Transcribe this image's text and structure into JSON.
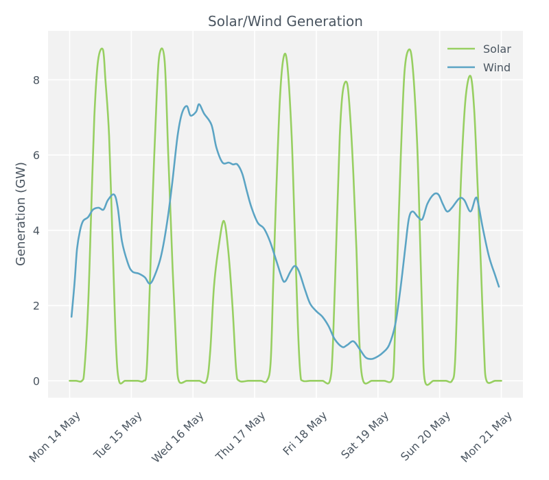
{
  "chart_data": {
    "type": "line",
    "title": "Solar/Wind Generation",
    "xlabel": "",
    "ylabel": "Generation (GW)",
    "x_unit": "days since Mon 14 May 00:00",
    "xlim": [
      -0.35,
      7.35
    ],
    "ylim": [
      -0.45,
      9.3
    ],
    "x_ticks": [
      {
        "value": 0,
        "label": "Mon 14 May"
      },
      {
        "value": 1,
        "label": "Tue 15 May"
      },
      {
        "value": 2,
        "label": "Wed 16 May"
      },
      {
        "value": 3,
        "label": "Thu 17 May"
      },
      {
        "value": 4,
        "label": "Fri 18 May"
      },
      {
        "value": 5,
        "label": "Sat 19 May"
      },
      {
        "value": 6,
        "label": "Sun 20 May"
      },
      {
        "value": 7,
        "label": "Mon 21 May"
      }
    ],
    "y_ticks": [
      {
        "value": 0,
        "label": "0"
      },
      {
        "value": 2,
        "label": "2"
      },
      {
        "value": 4,
        "label": "4"
      },
      {
        "value": 6,
        "label": "6"
      },
      {
        "value": 8,
        "label": "8"
      }
    ],
    "legend_position": "top-right",
    "grid": true,
    "series": [
      {
        "name": "Solar",
        "color": "#97cf61",
        "points": [
          [
            0.0,
            0
          ],
          [
            0.1,
            0
          ],
          [
            0.2,
            0
          ],
          [
            0.24,
            0.3
          ],
          [
            0.3,
            2.0
          ],
          [
            0.35,
            4.5
          ],
          [
            0.4,
            7.0
          ],
          [
            0.46,
            8.5
          ],
          [
            0.54,
            8.8
          ],
          [
            0.58,
            8.0
          ],
          [
            0.64,
            6.5
          ],
          [
            0.7,
            3.5
          ],
          [
            0.75,
            1.0
          ],
          [
            0.8,
            0
          ],
          [
            0.9,
            0
          ],
          [
            1.0,
            0
          ],
          [
            1.1,
            0
          ],
          [
            1.2,
            0
          ],
          [
            1.25,
            0.3
          ],
          [
            1.3,
            2.5
          ],
          [
            1.35,
            5.0
          ],
          [
            1.41,
            7.5
          ],
          [
            1.46,
            8.7
          ],
          [
            1.54,
            8.5
          ],
          [
            1.6,
            6.0
          ],
          [
            1.67,
            3.0
          ],
          [
            1.73,
            0.8
          ],
          [
            1.77,
            0
          ],
          [
            1.9,
            0
          ],
          [
            2.0,
            0
          ],
          [
            2.1,
            0
          ],
          [
            2.22,
            0
          ],
          [
            2.28,
            0.8
          ],
          [
            2.34,
            2.5
          ],
          [
            2.42,
            3.6
          ],
          [
            2.5,
            4.25
          ],
          [
            2.57,
            3.5
          ],
          [
            2.64,
            2.0
          ],
          [
            2.7,
            0.3
          ],
          [
            2.75,
            0
          ],
          [
            2.9,
            0
          ],
          [
            3.0,
            0
          ],
          [
            3.1,
            0
          ],
          [
            3.2,
            0
          ],
          [
            3.26,
            0.5
          ],
          [
            3.3,
            2.5
          ],
          [
            3.35,
            5.0
          ],
          [
            3.41,
            7.5
          ],
          [
            3.47,
            8.6
          ],
          [
            3.53,
            8.4
          ],
          [
            3.6,
            6.5
          ],
          [
            3.65,
            4.0
          ],
          [
            3.7,
            1.5
          ],
          [
            3.74,
            0.2
          ],
          [
            3.78,
            0
          ],
          [
            3.9,
            0
          ],
          [
            4.0,
            0
          ],
          [
            4.1,
            0
          ],
          [
            4.22,
            0
          ],
          [
            4.27,
            1.0
          ],
          [
            4.33,
            4.0
          ],
          [
            4.38,
            6.5
          ],
          [
            4.43,
            7.7
          ],
          [
            4.5,
            7.9
          ],
          [
            4.55,
            7.0
          ],
          [
            4.6,
            5.5
          ],
          [
            4.65,
            3.5
          ],
          [
            4.7,
            1.0
          ],
          [
            4.76,
            0
          ],
          [
            4.9,
            0
          ],
          [
            5.0,
            0
          ],
          [
            5.1,
            0
          ],
          [
            5.22,
            0
          ],
          [
            5.26,
            0.5
          ],
          [
            5.31,
            3.0
          ],
          [
            5.37,
            6.0
          ],
          [
            5.43,
            8.2
          ],
          [
            5.5,
            8.8
          ],
          [
            5.56,
            8.4
          ],
          [
            5.63,
            6.5
          ],
          [
            5.67,
            4.5
          ],
          [
            5.72,
            1.5
          ],
          [
            5.76,
            0
          ],
          [
            5.9,
            0
          ],
          [
            6.0,
            0
          ],
          [
            6.1,
            0
          ],
          [
            6.2,
            0
          ],
          [
            6.25,
            0.5
          ],
          [
            6.3,
            3.0
          ],
          [
            6.35,
            5.5
          ],
          [
            6.42,
            7.5
          ],
          [
            6.5,
            8.1
          ],
          [
            6.56,
            7.2
          ],
          [
            6.62,
            5.0
          ],
          [
            6.67,
            3.0
          ],
          [
            6.72,
            0.8
          ],
          [
            6.76,
            0
          ],
          [
            6.9,
            0
          ],
          [
            7.0,
            0
          ]
        ]
      },
      {
        "name": "Wind",
        "color": "#5ba4c4",
        "points": [
          [
            0.03,
            1.7
          ],
          [
            0.08,
            2.6
          ],
          [
            0.12,
            3.5
          ],
          [
            0.17,
            4.0
          ],
          [
            0.22,
            4.25
          ],
          [
            0.3,
            4.35
          ],
          [
            0.38,
            4.55
          ],
          [
            0.47,
            4.6
          ],
          [
            0.55,
            4.55
          ],
          [
            0.62,
            4.8
          ],
          [
            0.72,
            4.95
          ],
          [
            0.78,
            4.6
          ],
          [
            0.85,
            3.7
          ],
          [
            0.95,
            3.1
          ],
          [
            1.02,
            2.9
          ],
          [
            1.12,
            2.85
          ],
          [
            1.22,
            2.75
          ],
          [
            1.3,
            2.58
          ],
          [
            1.38,
            2.8
          ],
          [
            1.48,
            3.3
          ],
          [
            1.58,
            4.2
          ],
          [
            1.66,
            5.2
          ],
          [
            1.75,
            6.5
          ],
          [
            1.82,
            7.1
          ],
          [
            1.9,
            7.3
          ],
          [
            1.96,
            7.05
          ],
          [
            2.05,
            7.15
          ],
          [
            2.1,
            7.35
          ],
          [
            2.18,
            7.1
          ],
          [
            2.3,
            6.8
          ],
          [
            2.38,
            6.2
          ],
          [
            2.48,
            5.8
          ],
          [
            2.58,
            5.8
          ],
          [
            2.65,
            5.75
          ],
          [
            2.72,
            5.75
          ],
          [
            2.8,
            5.5
          ],
          [
            2.88,
            5.0
          ],
          [
            2.95,
            4.6
          ],
          [
            3.05,
            4.2
          ],
          [
            3.15,
            4.05
          ],
          [
            3.25,
            3.7
          ],
          [
            3.35,
            3.2
          ],
          [
            3.45,
            2.7
          ],
          [
            3.5,
            2.65
          ],
          [
            3.58,
            2.9
          ],
          [
            3.65,
            3.05
          ],
          [
            3.72,
            2.9
          ],
          [
            3.82,
            2.4
          ],
          [
            3.9,
            2.05
          ],
          [
            4.0,
            1.85
          ],
          [
            4.1,
            1.7
          ],
          [
            4.2,
            1.45
          ],
          [
            4.3,
            1.1
          ],
          [
            4.42,
            0.9
          ],
          [
            4.5,
            0.95
          ],
          [
            4.6,
            1.05
          ],
          [
            4.7,
            0.85
          ],
          [
            4.8,
            0.62
          ],
          [
            4.9,
            0.58
          ],
          [
            5.0,
            0.65
          ],
          [
            5.08,
            0.75
          ],
          [
            5.18,
            0.95
          ],
          [
            5.28,
            1.5
          ],
          [
            5.36,
            2.4
          ],
          [
            5.44,
            3.5
          ],
          [
            5.5,
            4.3
          ],
          [
            5.56,
            4.5
          ],
          [
            5.65,
            4.35
          ],
          [
            5.72,
            4.3
          ],
          [
            5.8,
            4.7
          ],
          [
            5.9,
            4.95
          ],
          [
            5.98,
            4.95
          ],
          [
            6.05,
            4.7
          ],
          [
            6.12,
            4.5
          ],
          [
            6.2,
            4.6
          ],
          [
            6.32,
            4.85
          ],
          [
            6.4,
            4.8
          ],
          [
            6.5,
            4.5
          ],
          [
            6.58,
            4.85
          ],
          [
            6.62,
            4.75
          ],
          [
            6.7,
            4.05
          ],
          [
            6.8,
            3.3
          ],
          [
            6.9,
            2.8
          ],
          [
            6.96,
            2.5
          ]
        ]
      }
    ]
  }
}
